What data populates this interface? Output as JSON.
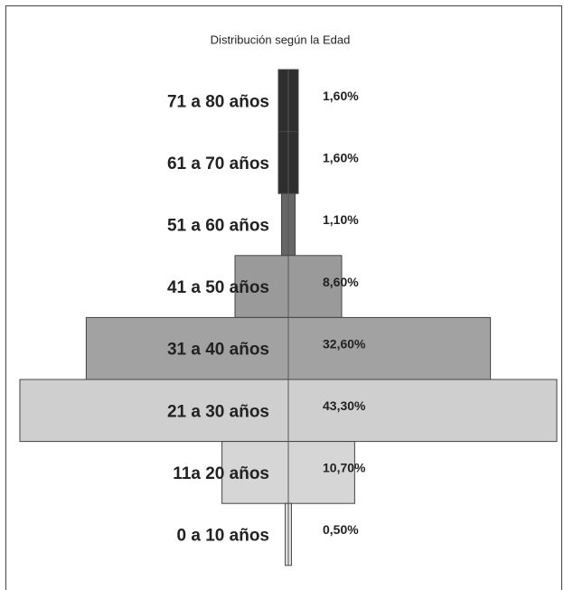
{
  "chart_data": {
    "type": "bar",
    "title": "Distribución según la Edad",
    "categories": [
      "71 a 80 años",
      "61 a 70 años",
      "51 a 60 años",
      "41 a 50 años",
      "31 a 40 años",
      "21 a 30 años",
      "11a 20 años",
      "0 a 10 años"
    ],
    "values": [
      1.6,
      1.6,
      1.1,
      8.6,
      32.6,
      43.3,
      10.7,
      0.5
    ],
    "value_labels": [
      "1,60%",
      "1,60%",
      "1,10%",
      "8,60%",
      "32,60%",
      "43,30%",
      "10,70%",
      "0,50%"
    ],
    "colors": [
      "#2e2e2e",
      "#2e2e2e",
      "#666666",
      "#9a9a9a",
      "#a2a2a2",
      "#cfcfcf",
      "#d6d6d6",
      "#e4e4e4"
    ]
  }
}
